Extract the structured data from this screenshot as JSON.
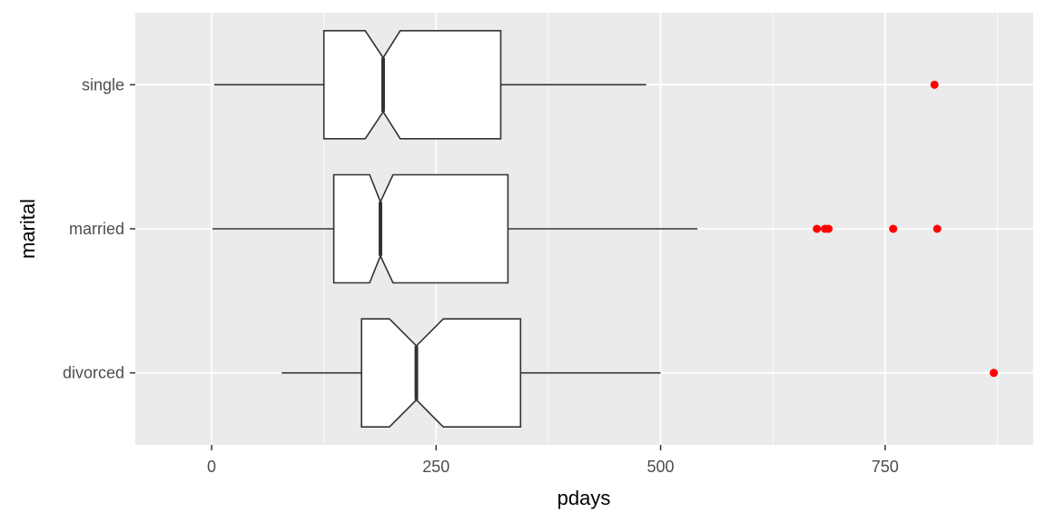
{
  "chart_data": {
    "type": "boxplot",
    "orientation": "horizontal",
    "notched": true,
    "xlabel": "pdays",
    "ylabel": "marital",
    "xlim": [
      -85,
      915
    ],
    "x_ticks": [
      0,
      250,
      500,
      750
    ],
    "x_tick_labels": [
      "0",
      "250",
      "500",
      "750"
    ],
    "categories": [
      "divorced",
      "married",
      "single"
    ],
    "series": [
      {
        "category": "divorced",
        "whisker_low": 78,
        "q1": 167,
        "notch_low": 198,
        "median": 228,
        "notch_high": 258,
        "q3": 344,
        "whisker_high": 500,
        "outliers": [
          871
        ]
      },
      {
        "category": "married",
        "whisker_low": 1,
        "q1": 136,
        "notch_low": 176,
        "median": 188,
        "notch_high": 202,
        "q3": 330,
        "whisker_high": 541,
        "outliers": [
          674,
          683,
          687,
          759,
          808
        ]
      },
      {
        "category": "single",
        "whisker_low": 3,
        "q1": 125,
        "notch_low": 171,
        "median": 191,
        "notch_high": 210,
        "q3": 322,
        "whisker_high": 484,
        "outliers": [
          805
        ]
      }
    ],
    "grid": true,
    "colors": {
      "panel": "#ebebeb",
      "grid": "#ffffff",
      "box_fill": "#ffffff",
      "box_stroke": "#333333",
      "outlier": "#ff0000",
      "tick": "#333333"
    }
  }
}
